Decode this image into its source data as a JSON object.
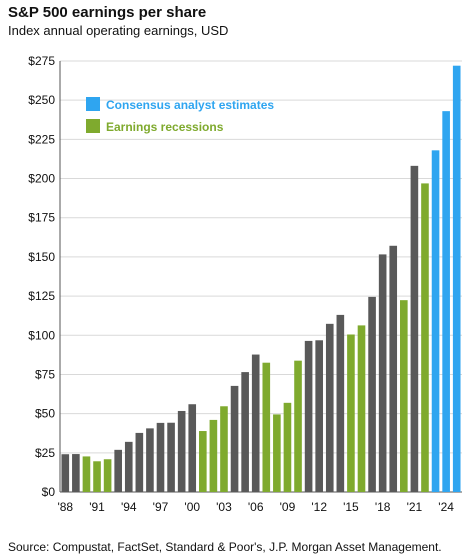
{
  "title": "S&P 500 earnings per share",
  "subtitle": "Index annual operating earnings, USD",
  "source": "Source: Compustat, FactSet, Standard & Poor's, J.P. Morgan Asset Management.",
  "chart_data": {
    "type": "bar",
    "categories": [
      "1988",
      "1989",
      "1990",
      "1991",
      "1992",
      "1993",
      "1994",
      "1995",
      "1996",
      "1997",
      "1998",
      "1999",
      "2000",
      "2001",
      "2002",
      "2003",
      "2004",
      "2005",
      "2006",
      "2007",
      "2008",
      "2009",
      "2010",
      "2011",
      "2012",
      "2013",
      "2014",
      "2015",
      "2016",
      "2017",
      "2018",
      "2019",
      "2020",
      "2021",
      "2022",
      "2023",
      "2024",
      "2025"
    ],
    "values": [
      24.1,
      24.2,
      22.7,
      19.6,
      20.9,
      26.9,
      32.0,
      37.7,
      40.6,
      44.1,
      44.2,
      51.7,
      56.0,
      38.9,
      46.0,
      54.7,
      67.7,
      76.5,
      87.7,
      82.5,
      49.5,
      56.9,
      83.8,
      96.4,
      96.8,
      107.3,
      113.0,
      100.5,
      106.3,
      124.5,
      151.6,
      157.1,
      122.4,
      208.1,
      196.9,
      218.0,
      243.0,
      272.0
    ],
    "series_type": [
      "actual",
      "actual",
      "recession",
      "recession",
      "recession",
      "actual",
      "actual",
      "actual",
      "actual",
      "actual",
      "actual",
      "actual",
      "actual",
      "recession",
      "recession",
      "recession",
      "actual",
      "actual",
      "actual",
      "recession",
      "recession",
      "recession",
      "recession",
      "actual",
      "actual",
      "actual",
      "actual",
      "recession",
      "recession",
      "actual",
      "actual",
      "actual",
      "recession",
      "actual",
      "recession",
      "estimate",
      "estimate",
      "estimate"
    ],
    "tick_labels": [
      "'88",
      "'91",
      "'94",
      "'97",
      "'00",
      "'03",
      "'06",
      "'09",
      "'12",
      "'15",
      "'18",
      "'21",
      "'24"
    ],
    "tick_categories": [
      "1988",
      "1991",
      "1994",
      "1997",
      "2000",
      "2003",
      "2006",
      "2009",
      "2012",
      "2015",
      "2018",
      "2021",
      "2024"
    ],
    "y_ticks": [
      0,
      25,
      50,
      75,
      100,
      125,
      150,
      175,
      200,
      225,
      250,
      275
    ],
    "y_tick_labels": [
      "$0",
      "$25",
      "$50",
      "$75",
      "$100",
      "$125",
      "$150",
      "$175",
      "$200",
      "$225",
      "$250",
      "$275"
    ],
    "ylim": [
      0,
      275
    ],
    "grid": true,
    "legend": [
      {
        "key": "estimate",
        "label": "Consensus analyst estimates"
      },
      {
        "key": "recession",
        "label": "Earnings recessions"
      }
    ],
    "legend_position": "top-left",
    "colors": {
      "actual": "#595959",
      "recession": "#7faa2e",
      "estimate": "#2fa5f0",
      "estimate_text": "#2fa5f0",
      "recession_text": "#7faa2e",
      "grid": "#d9d9d9"
    }
  }
}
